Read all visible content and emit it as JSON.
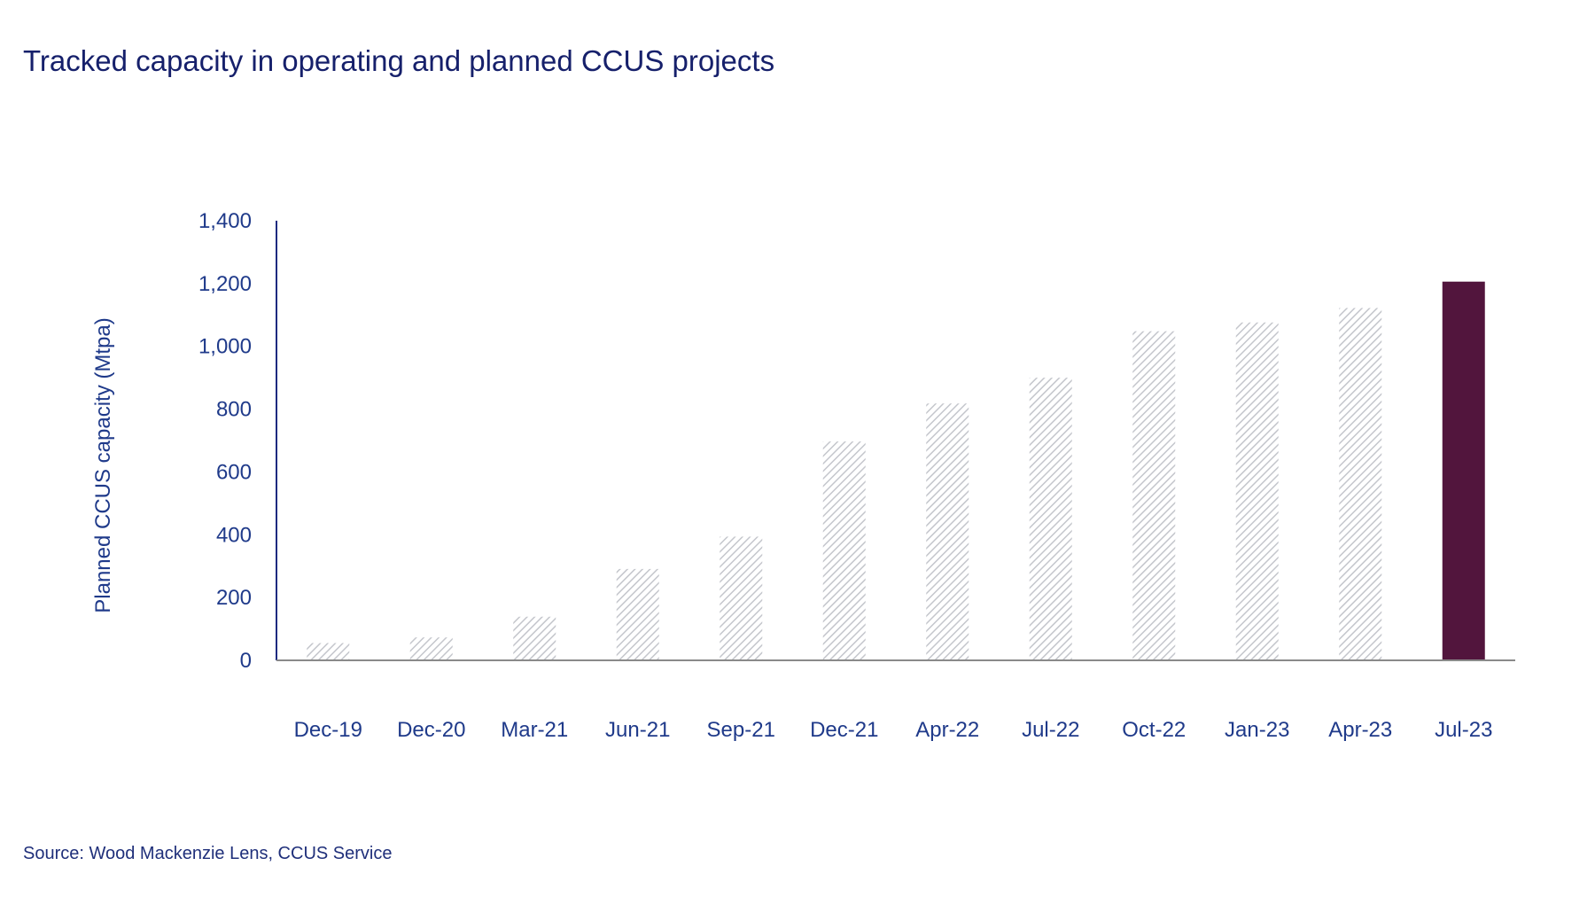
{
  "chart_data": {
    "type": "bar",
    "title": "Tracked capacity in operating and planned CCUS projects",
    "xlabel": "",
    "ylabel": "Planned CCUS capacity (Mtpa)",
    "ylim": [
      0,
      1400
    ],
    "yticks": [
      "0",
      "200",
      "400",
      "600",
      "800",
      "1,000",
      "1,200",
      "1,400"
    ],
    "ytick_values": [
      0,
      200,
      400,
      600,
      800,
      1000,
      1200,
      1400
    ],
    "categories": [
      "Dec-19",
      "Dec-20",
      "Mar-21",
      "Jun-21",
      "Sep-21",
      "Dec-21",
      "Apr-22",
      "Jul-22",
      "Oct-22",
      "Jan-23",
      "Apr-23",
      "Jul-23"
    ],
    "values": [
      55,
      73,
      139,
      291,
      394,
      697,
      818,
      900,
      1048,
      1076,
      1122,
      1206
    ],
    "highlight_index": 11,
    "grid": false,
    "colors": {
      "hatched": "#c4c6cc",
      "highlight": "#52153d",
      "axis": "#1a2a80",
      "baseline": "#8a8a8a"
    },
    "source": "Source: Wood Mackenzie Lens, CCUS Service"
  }
}
